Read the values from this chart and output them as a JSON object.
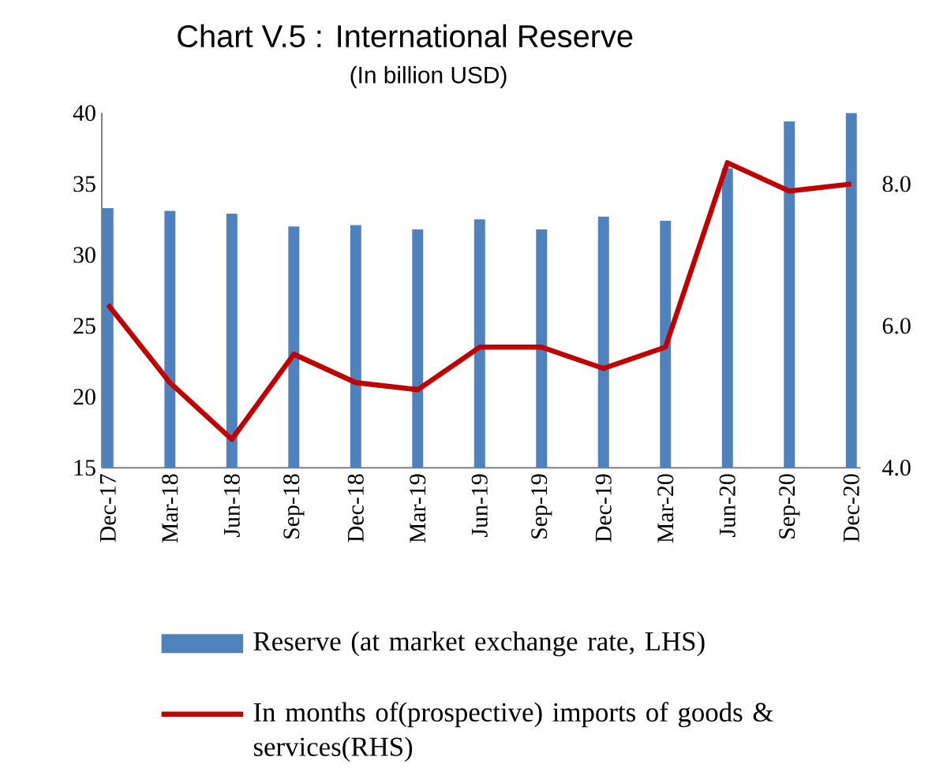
{
  "chart_data": {
    "type": "bar",
    "title": "Chart V.5 : International Reserve",
    "subtitle": "(In billion USD)",
    "categories": [
      "Dec-17",
      "Mar-18",
      "Jun-18",
      "Sep-18",
      "Dec-18",
      "Mar-19",
      "Jun-19",
      "Sep-19",
      "Dec-19",
      "Mar-20",
      "Jun-20",
      "Sep-20",
      "Dec-20"
    ],
    "series": [
      {
        "name": "Reserve (at market exchange rate, LHS)",
        "color": "#4f81bd",
        "values": [
          33.3,
          33.1,
          32.9,
          32.0,
          32.1,
          31.8,
          32.5,
          31.8,
          32.7,
          32.4,
          36.1,
          39.4,
          40.0
        ]
      },
      {
        "name": "In months of(prospective) imports of goods & services(RHS)",
        "type": "line",
        "axis": "y2",
        "color": "#c00000",
        "values": [
          6.3,
          5.2,
          4.4,
          5.6,
          5.2,
          5.1,
          5.7,
          5.7,
          5.4,
          5.7,
          8.3,
          7.9,
          8.0
        ]
      }
    ],
    "ylim": [
      15,
      40
    ],
    "yticks": [
      15,
      20,
      25,
      30,
      35,
      40
    ],
    "y2lim": [
      4,
      9
    ],
    "y2ticks": [
      {
        "value": 4,
        "label": "4.0"
      },
      {
        "value": 6,
        "label": "6.0"
      },
      {
        "value": 8,
        "label": "8.0"
      }
    ],
    "legend": "bottom",
    "grid": false
  }
}
